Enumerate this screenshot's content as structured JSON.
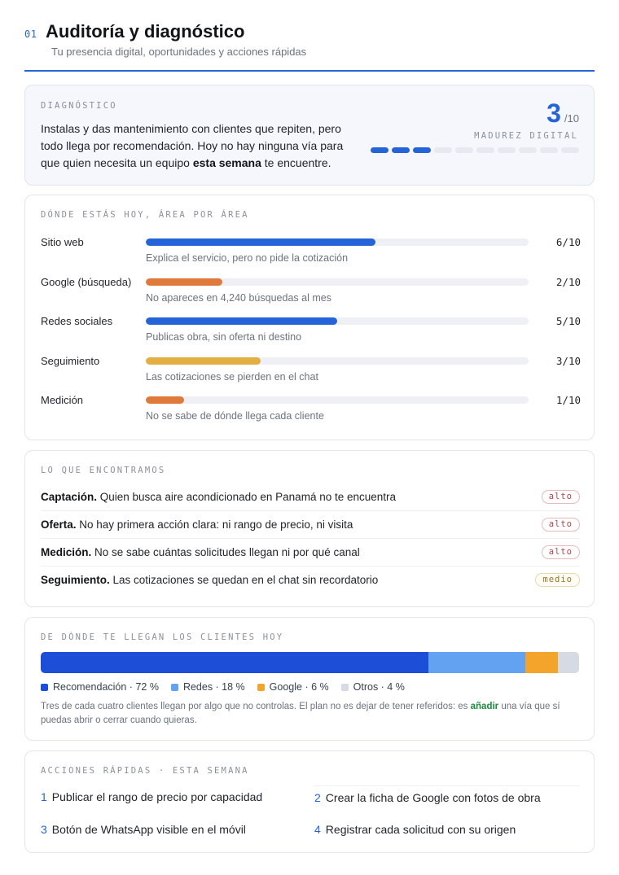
{
  "header": {
    "section_number": "01",
    "title": "Auditoría y diagnóstico",
    "subtitle": "Tu presencia digital, oportunidades y acciones rápidas"
  },
  "colors": {
    "accent": "#2563d8",
    "orange": "#e07a3a",
    "yellow": "#e3ae42",
    "light_blue": "#62a2f0",
    "amber": "#f2a52a",
    "gray": "#d6dae3",
    "dark_blue": "#1d4ed8"
  },
  "diagnosis": {
    "label": "DIAGNÓSTICO",
    "text_before": "Instalas y das mantenimiento con clientes que repiten, pero todo llega por recomendación. Hoy no hay ninguna vía para que quien necesita un equipo ",
    "text_bold": "esta semana",
    "text_after": " te encuentre.",
    "score": "3",
    "score_max": "/10",
    "score_label": "MADUREZ DIGITAL",
    "score_value": 3,
    "score_segments": 10
  },
  "areas": {
    "label": "DÓNDE ESTÁS HOY, ÁREA POR ÁREA",
    "items": [
      {
        "name": "Sitio web",
        "score_text": "6/10",
        "value": 6,
        "color": "#2563d8",
        "note": "Explica el servicio, pero no pide la cotización"
      },
      {
        "name": "Google (búsqueda)",
        "score_text": "2/10",
        "value": 2,
        "color": "#e07a3a",
        "note": "No apareces en 4,240 búsquedas al mes"
      },
      {
        "name": "Redes sociales",
        "score_text": "5/10",
        "value": 5,
        "color": "#2563d8",
        "note": "Publicas obra, sin oferta ni destino"
      },
      {
        "name": "Seguimiento",
        "score_text": "3/10",
        "value": 3,
        "color": "#e3ae42",
        "note": "Las cotizaciones se pierden en el chat"
      },
      {
        "name": "Medición",
        "score_text": "1/10",
        "value": 1,
        "color": "#e07a3a",
        "note": "No se sabe de dónde llega cada cliente"
      }
    ]
  },
  "findings": {
    "label": "LO QUE ENCONTRAMOS",
    "items": [
      {
        "title": "Captación.",
        "text": " Quien busca aire acondicionado en Panamá no te encuentra",
        "severity": "alto"
      },
      {
        "title": "Oferta.",
        "text": " No hay primera acción clara: ni rango de precio, ni visita",
        "severity": "alto"
      },
      {
        "title": "Medición.",
        "text": " No se sabe cuántas solicitudes llegan ni por qué canal",
        "severity": "alto"
      },
      {
        "title": "Seguimiento.",
        "text": " Las cotizaciones se quedan en el chat sin recordatorio",
        "severity": "medio"
      }
    ]
  },
  "sources": {
    "label": "DE DÓNDE TE LLEGAN LOS CLIENTES HOY",
    "items": [
      {
        "name": "Recomendación · 72 %",
        "value": 72,
        "color": "#1d4ed8"
      },
      {
        "name": "Redes · 18 %",
        "value": 18,
        "color": "#62a2f0"
      },
      {
        "name": "Google · 6 %",
        "value": 6,
        "color": "#f2a52a"
      },
      {
        "name": "Otros · 4 %",
        "value": 4,
        "color": "#d6dae3"
      }
    ],
    "note_before": "Tres de cada cuatro clientes llegan por algo que no controlas. El plan no es dejar de tener referidos: es ",
    "note_highlight": "añadir",
    "note_after": " una vía que sí puedas abrir o cerrar cuando quieras."
  },
  "actions": {
    "label": "ACCIONES RÁPIDAS · ESTA SEMANA",
    "items": [
      {
        "num": "1",
        "text": "Publicar el rango de precio por capacidad"
      },
      {
        "num": "2",
        "text": "Crear la ficha de Google con fotos de obra"
      },
      {
        "num": "3",
        "text": "Botón de WhatsApp visible en el móvil"
      },
      {
        "num": "4",
        "text": "Registrar cada solicitud con su origen"
      }
    ]
  }
}
